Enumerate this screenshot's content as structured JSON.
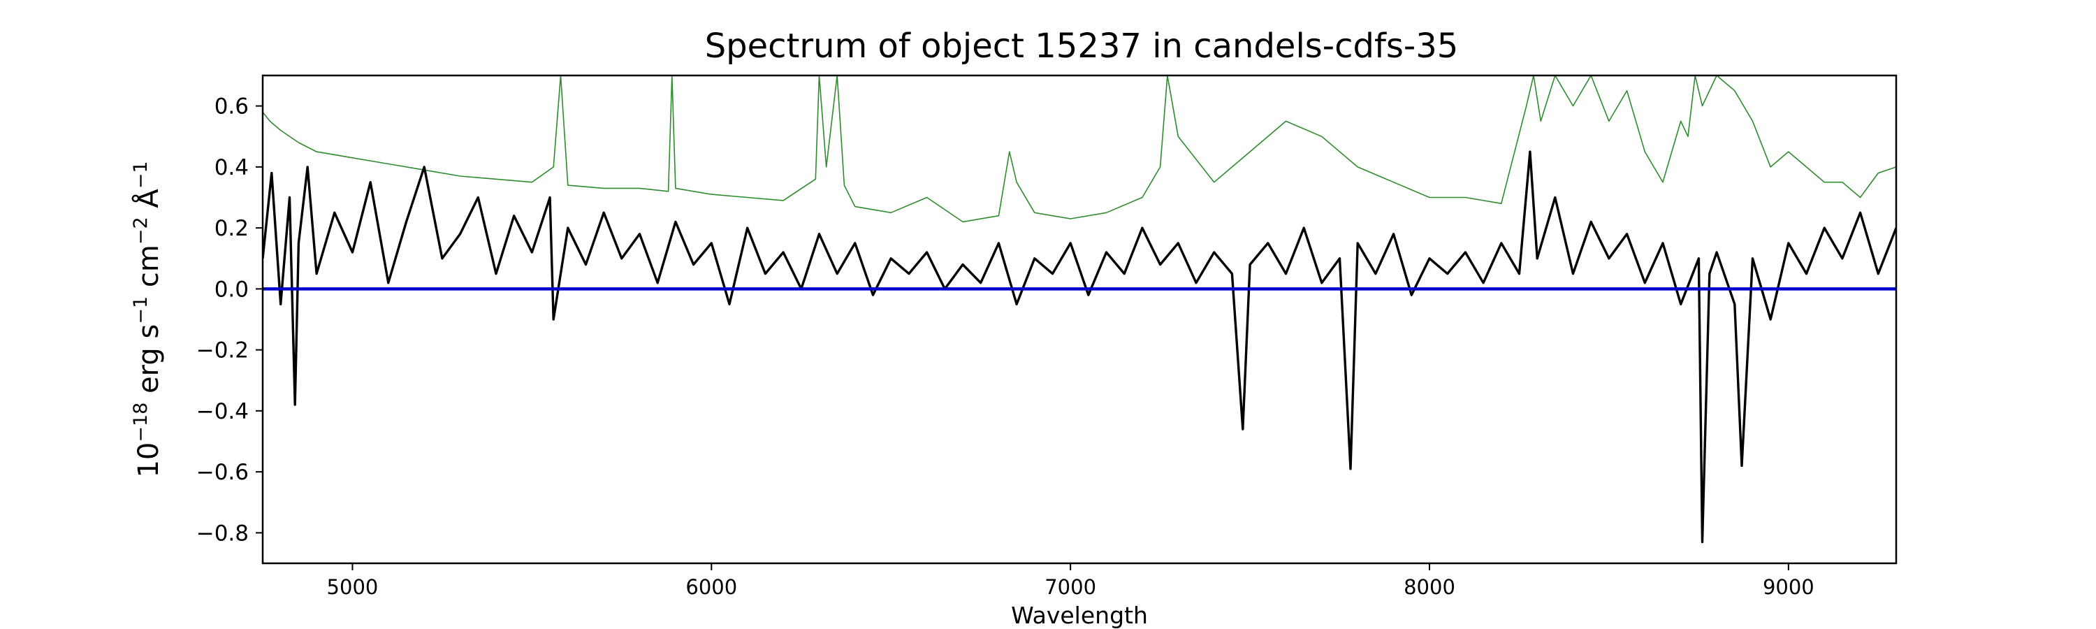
{
  "chart_data": {
    "type": "line",
    "title": "Spectrum of object 15237 in candels-cdfs-35",
    "xlabel": "Wavelength",
    "ylabel_parts": [
      "10",
      "−18",
      " erg s",
      "−1",
      " cm",
      "−2",
      " Å",
      "−1"
    ],
    "xlim": [
      4750,
      9300
    ],
    "ylim": [
      -0.9,
      0.7
    ],
    "x_ticks": [
      5000,
      6000,
      7000,
      8000,
      9000
    ],
    "y_ticks": [
      -0.8,
      -0.6,
      -0.4,
      -0.2,
      0.0,
      0.2,
      0.4,
      0.6
    ],
    "y_tick_labels": [
      "−0.8",
      "−0.6",
      "−0.4",
      "−0.2",
      "0.0",
      "0.2",
      "0.4",
      "0.6"
    ],
    "grid": false,
    "series": [
      {
        "role": "error",
        "color": "#2e8b2e",
        "x": [
          4750,
          4770,
          4800,
          4850,
          4900,
          5000,
          5100,
          5200,
          5300,
          5400,
          5500,
          5560,
          5580,
          5600,
          5700,
          5800,
          5880,
          5890,
          5900,
          6000,
          6100,
          6200,
          6290,
          6300,
          6320,
          6350,
          6370,
          6400,
          6500,
          6600,
          6700,
          6800,
          6830,
          6850,
          6900,
          7000,
          7100,
          7200,
          7250,
          7270,
          7300,
          7400,
          7500,
          7600,
          7700,
          7800,
          7900,
          8000,
          8100,
          8200,
          8270,
          8290,
          8310,
          8350,
          8400,
          8450,
          8500,
          8550,
          8600,
          8650,
          8700,
          8720,
          8740,
          8760,
          8800,
          8850,
          8900,
          8950,
          9000,
          9050,
          9100,
          9150,
          9200,
          9250,
          9300
        ],
        "y": [
          0.58,
          0.55,
          0.52,
          0.48,
          0.45,
          0.43,
          0.41,
          0.39,
          0.37,
          0.36,
          0.35,
          0.4,
          0.7,
          0.34,
          0.33,
          0.33,
          0.32,
          0.7,
          0.33,
          0.31,
          0.3,
          0.29,
          0.36,
          0.7,
          0.4,
          0.7,
          0.34,
          0.27,
          0.25,
          0.3,
          0.22,
          0.24,
          0.45,
          0.35,
          0.25,
          0.23,
          0.25,
          0.3,
          0.4,
          0.7,
          0.5,
          0.35,
          0.45,
          0.55,
          0.5,
          0.4,
          0.35,
          0.3,
          0.3,
          0.28,
          0.6,
          0.7,
          0.55,
          0.7,
          0.6,
          0.7,
          0.55,
          0.65,
          0.45,
          0.35,
          0.55,
          0.5,
          0.7,
          0.6,
          0.7,
          0.65,
          0.55,
          0.4,
          0.45,
          0.4,
          0.35,
          0.35,
          0.3,
          0.38,
          0.4
        ]
      },
      {
        "role": "flux",
        "color": "#000000",
        "x": [
          4750,
          4775,
          4800,
          4825,
          4840,
          4850,
          4875,
          4900,
          4950,
          5000,
          5050,
          5100,
          5150,
          5200,
          5250,
          5300,
          5350,
          5400,
          5450,
          5500,
          5550,
          5560,
          5600,
          5650,
          5700,
          5750,
          5800,
          5850,
          5900,
          5950,
          6000,
          6050,
          6100,
          6150,
          6200,
          6250,
          6300,
          6350,
          6400,
          6450,
          6500,
          6550,
          6600,
          6650,
          6700,
          6750,
          6800,
          6850,
          6900,
          6950,
          7000,
          7050,
          7100,
          7150,
          7200,
          7250,
          7300,
          7350,
          7400,
          7450,
          7480,
          7500,
          7550,
          7600,
          7650,
          7700,
          7750,
          7780,
          7800,
          7850,
          7900,
          7950,
          8000,
          8050,
          8100,
          8150,
          8200,
          8250,
          8280,
          8300,
          8350,
          8400,
          8450,
          8500,
          8550,
          8600,
          8650,
          8700,
          8750,
          8760,
          8780,
          8800,
          8850,
          8870,
          8900,
          8950,
          9000,
          9050,
          9100,
          9150,
          9200,
          9250,
          9300
        ],
        "y": [
          0.1,
          0.38,
          -0.05,
          0.3,
          -0.38,
          0.15,
          0.4,
          0.05,
          0.25,
          0.12,
          0.35,
          0.02,
          0.22,
          0.4,
          0.1,
          0.18,
          0.3,
          0.05,
          0.24,
          0.12,
          0.3,
          -0.1,
          0.2,
          0.08,
          0.25,
          0.1,
          0.18,
          0.02,
          0.22,
          0.08,
          0.15,
          -0.05,
          0.2,
          0.05,
          0.12,
          0.0,
          0.18,
          0.05,
          0.15,
          -0.02,
          0.1,
          0.05,
          0.12,
          0.0,
          0.08,
          0.02,
          0.15,
          -0.05,
          0.1,
          0.05,
          0.15,
          -0.02,
          0.12,
          0.05,
          0.2,
          0.08,
          0.15,
          0.02,
          0.12,
          0.05,
          -0.46,
          0.08,
          0.15,
          0.05,
          0.2,
          0.02,
          0.1,
          -0.59,
          0.15,
          0.05,
          0.18,
          -0.02,
          0.1,
          0.05,
          0.12,
          0.02,
          0.15,
          0.05,
          0.45,
          0.1,
          0.3,
          0.05,
          0.22,
          0.1,
          0.18,
          0.02,
          0.15,
          -0.05,
          0.1,
          -0.83,
          0.05,
          0.12,
          -0.05,
          -0.58,
          0.1,
          -0.1,
          0.15,
          0.05,
          0.2,
          0.1,
          0.25,
          0.05,
          0.2
        ]
      },
      {
        "role": "zero-line",
        "color": "#0000cd",
        "x": [
          4750,
          9300
        ],
        "y": [
          0.0,
          0.0
        ]
      }
    ]
  }
}
